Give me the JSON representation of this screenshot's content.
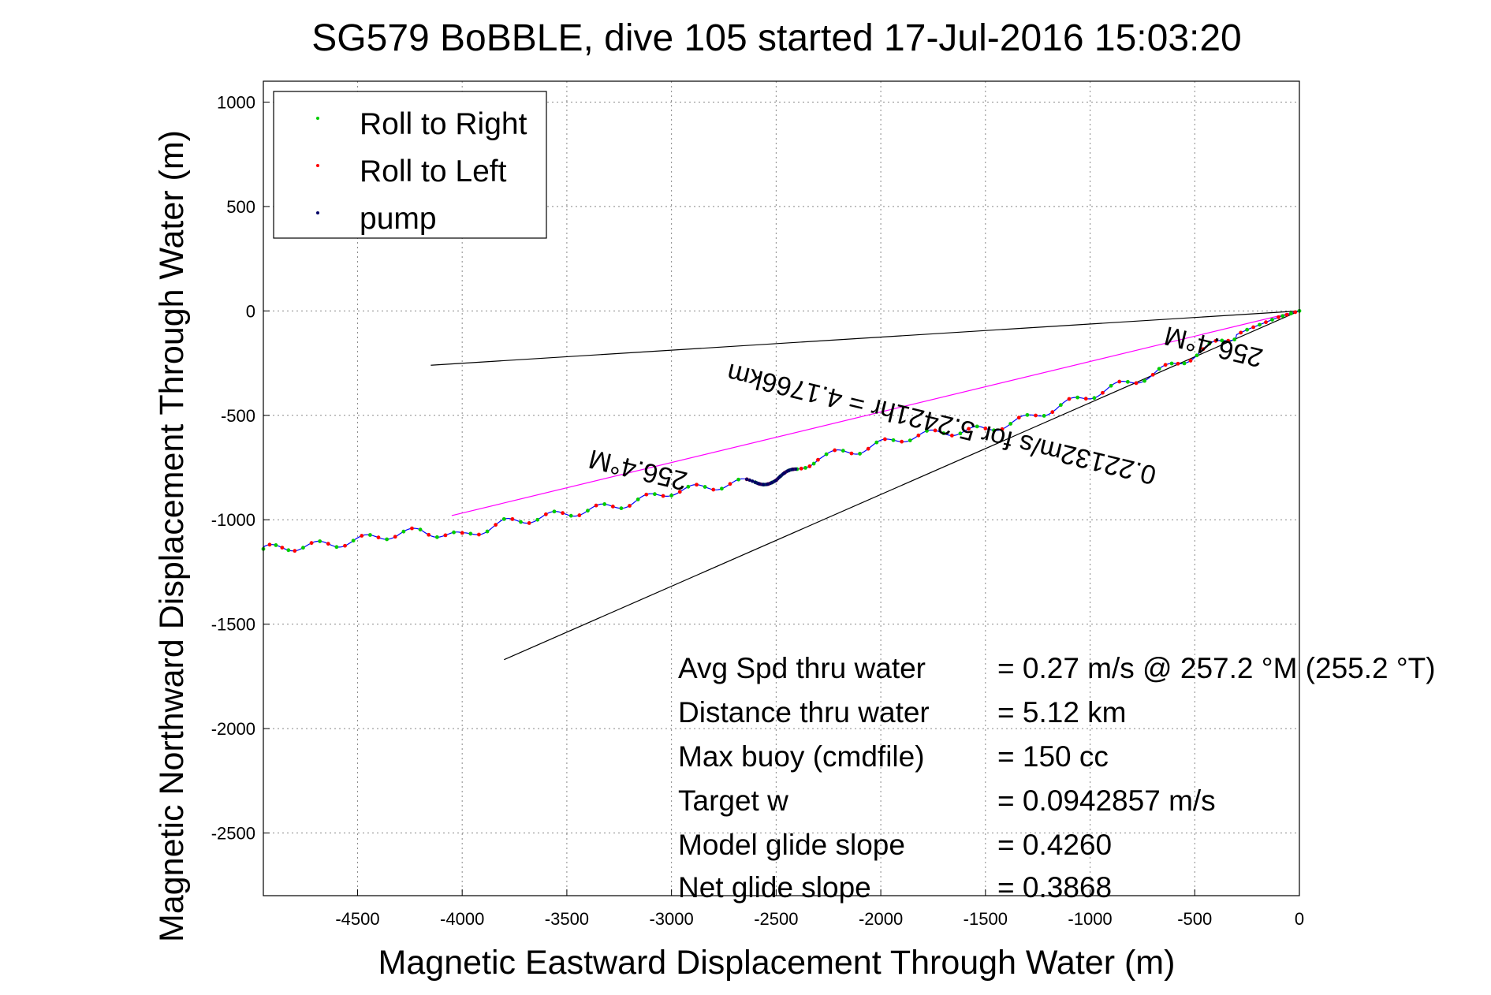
{
  "chart_data": {
    "type": "line",
    "title": "SG579 BoBBLE, dive 105 started 17-Jul-2016 15:03:20",
    "xlabel": "Magnetic Eastward Displacement Through Water (m)",
    "ylabel": "Magnetic Northward Displacement Through Water (m)",
    "xlim": [
      -4950,
      0
    ],
    "ylim": [
      -2800,
      1100
    ],
    "xticks": [
      -4500,
      -4000,
      -3500,
      -3000,
      -2500,
      -2000,
      -1500,
      -1000,
      -500,
      0
    ],
    "xtick_labels": [
      "-4500",
      "-4000",
      "-3500",
      "-3000",
      "-2500",
      "-2000",
      "-1500",
      "-1000",
      "-500",
      "0"
    ],
    "yticks": [
      1000,
      500,
      0,
      -500,
      -1000,
      -1500,
      -2000,
      -2500
    ],
    "ytick_labels": [
      "1000",
      "500",
      "0",
      "-500",
      "-1000",
      "-1500",
      "-2000",
      "-2500"
    ],
    "grid": true,
    "legend": {
      "placement": "top-left",
      "entries": [
        {
          "label": "Roll to Right",
          "color": "#00cc00"
        },
        {
          "label": "Roll to Left",
          "color": "#ff0000"
        },
        {
          "label": "pump",
          "color": "#000066"
        }
      ]
    },
    "track": {
      "name": "glider track",
      "color": "#0000ff",
      "x": [
        0,
        -100,
        -250,
        -400,
        -550,
        -700,
        -900,
        -1100,
        -1300,
        -1500,
        -1700,
        -1900,
        -2100,
        -2300,
        -2400,
        -2500,
        -2600,
        -2800,
        -3000,
        -3200,
        -3400,
        -3600,
        -3800,
        -4000,
        -4200,
        -4400,
        -4600,
        -4800,
        -4950
      ],
      "y": [
        0,
        -30,
        -90,
        -160,
        -235,
        -305,
        -370,
        -440,
        -515,
        -570,
        -580,
        -610,
        -665,
        -700,
        -765,
        -810,
        -815,
        -840,
        -865,
        -920,
        -955,
        -985,
        -1015,
        -1080,
        -1055,
        -1080,
        -1115,
        -1130,
        -1140
      ]
    },
    "lines": [
      {
        "name": "heading line upper",
        "color": "#000000",
        "x": [
          0,
          -4150
        ],
        "y": [
          0,
          -260
        ]
      },
      {
        "name": "heading line lower",
        "color": "#000000",
        "x": [
          0,
          -3800
        ],
        "y": [
          0,
          -1670
        ]
      },
      {
        "name": "mean heading line",
        "color": "#ff00ff",
        "x": [
          0,
          -4050
        ],
        "y": [
          0,
          -980
        ]
      }
    ],
    "annotations": [
      {
        "text": "256.4°M",
        "x": -400,
        "y": -130,
        "rotation_deg": 193.6
      },
      {
        "text": "0.22132m/s for 5.2421hr = 4.1766km",
        "x": -1700,
        "y": -500,
        "rotation_deg": 193.6
      },
      {
        "text": "256.4°M",
        "x": -3150,
        "y": -720,
        "rotation_deg": 193.6
      }
    ],
    "stats": [
      {
        "label": "Avg Spd thru water",
        "value": "=  0.27 m/s @ 257.2 °M (255.2 °T)"
      },
      {
        "label": "Distance thru water",
        "value": "=  5.12 km"
      },
      {
        "label": "Max buoy (cmdfile)",
        "value": "= 150 cc"
      },
      {
        "label": "Target w",
        "value": "= 0.0942857 m/s"
      },
      {
        "label": "Model glide slope",
        "value": "= 0.4260"
      },
      {
        "label": "Net glide slope",
        "value": "= 0.3868"
      }
    ]
  }
}
